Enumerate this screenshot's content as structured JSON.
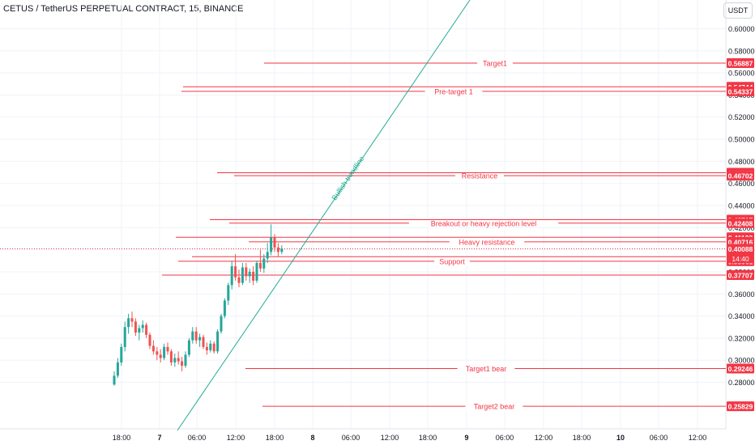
{
  "header": {
    "title": "CETUS / TetherUS PERPETUAL CONTRACT, 15, BINANCE",
    "currency": "USDT"
  },
  "colors": {
    "up": "#26a69a",
    "down": "#ef5350",
    "level": "#f23645",
    "trend": "#22ab94",
    "axis_text": "#131722",
    "grid": "#f0f3fa"
  },
  "chart_data": {
    "type": "candlestick",
    "title": "CETUS / TetherUS PERPETUAL CONTRACT, 15, BINANCE",
    "ylim": [
      0.262,
      0.63
    ],
    "y_ticks": [
      "0.60000",
      "0.58000",
      "0.56000",
      "0.54000",
      "0.52000",
      "0.50000",
      "0.48000",
      "0.46000",
      "0.44000",
      "0.42000",
      "0.40000",
      "0.38000",
      "0.36000",
      "0.34000",
      "0.32000",
      "0.30000",
      "0.28000"
    ],
    "x_ticks": [
      "18:00",
      "7",
      "06:00",
      "12:00",
      "18:00",
      "8",
      "06:00",
      "12:00",
      "18:00",
      "9",
      "06:00",
      "12:00",
      "18:00",
      "10",
      "06:00",
      "12:00"
    ],
    "levels": [
      {
        "name": "Target1",
        "price": 0.56887
      },
      {
        "name": "Pre-target 1",
        "price": 0.54337
      },
      {
        "name": "",
        "price": 0.54744
      },
      {
        "name": "Resistance",
        "price": 0.46702
      },
      {
        "name": "",
        "price": 0.46965
      },
      {
        "name": "Breakout or heavy rejection level",
        "price": 0.42408
      },
      {
        "name": "",
        "price": 0.42717
      },
      {
        "name": "Heavy resistance",
        "price": 0.40716
      },
      {
        "name": "",
        "price": 0.41123
      },
      {
        "name": "Support",
        "price": 0.38961
      },
      {
        "name": "",
        "price": 0.39368
      },
      {
        "name": "",
        "price": 0.37707
      },
      {
        "name": "Target1 bear",
        "price": 0.29246
      },
      {
        "name": "Target2 bear",
        "price": 0.25829
      }
    ],
    "price_labels": [
      "0.56887",
      "0.54744",
      "0.54337",
      "0.46965",
      "0.46702",
      "0.42717",
      "0.42408",
      "0.41123",
      "0.40716",
      "0.40088",
      "0.39368",
      "0.38961",
      "0.37707",
      "0.29246",
      "0.25829"
    ],
    "current_price": "0.40088",
    "countdown": "14:40",
    "trendline_label": "Bullish trendline",
    "candles": [
      [
        0.278,
        0.29,
        0.277,
        0.286
      ],
      [
        0.286,
        0.302,
        0.284,
        0.298
      ],
      [
        0.298,
        0.315,
        0.295,
        0.312
      ],
      [
        0.312,
        0.335,
        0.308,
        0.33
      ],
      [
        0.33,
        0.342,
        0.324,
        0.338
      ],
      [
        0.338,
        0.344,
        0.33,
        0.335
      ],
      [
        0.335,
        0.338,
        0.322,
        0.325
      ],
      [
        0.325,
        0.332,
        0.318,
        0.329
      ],
      [
        0.329,
        0.336,
        0.325,
        0.332
      ],
      [
        0.332,
        0.334,
        0.32,
        0.323
      ],
      [
        0.323,
        0.325,
        0.31,
        0.313
      ],
      [
        0.313,
        0.318,
        0.305,
        0.308
      ],
      [
        0.308,
        0.312,
        0.3,
        0.305
      ],
      [
        0.305,
        0.31,
        0.298,
        0.302
      ],
      [
        0.302,
        0.315,
        0.3,
        0.312
      ],
      [
        0.312,
        0.316,
        0.305,
        0.308
      ],
      [
        0.308,
        0.31,
        0.295,
        0.298
      ],
      [
        0.298,
        0.306,
        0.294,
        0.302
      ],
      [
        0.302,
        0.308,
        0.296,
        0.299
      ],
      [
        0.299,
        0.303,
        0.29,
        0.295
      ],
      [
        0.295,
        0.308,
        0.293,
        0.305
      ],
      [
        0.305,
        0.32,
        0.303,
        0.318
      ],
      [
        0.318,
        0.33,
        0.315,
        0.326
      ],
      [
        0.326,
        0.33,
        0.315,
        0.318
      ],
      [
        0.318,
        0.324,
        0.312,
        0.321
      ],
      [
        0.321,
        0.323,
        0.31,
        0.312
      ],
      [
        0.312,
        0.316,
        0.305,
        0.309
      ],
      [
        0.309,
        0.318,
        0.307,
        0.315
      ],
      [
        0.315,
        0.317,
        0.306,
        0.308
      ],
      [
        0.308,
        0.328,
        0.306,
        0.326
      ],
      [
        0.326,
        0.342,
        0.324,
        0.34
      ],
      [
        0.34,
        0.356,
        0.338,
        0.354
      ],
      [
        0.354,
        0.37,
        0.35,
        0.368
      ],
      [
        0.368,
        0.39,
        0.364,
        0.385
      ],
      [
        0.385,
        0.396,
        0.372,
        0.375
      ],
      [
        0.375,
        0.382,
        0.366,
        0.37
      ],
      [
        0.37,
        0.388,
        0.368,
        0.384
      ],
      [
        0.384,
        0.388,
        0.372,
        0.376
      ],
      [
        0.376,
        0.383,
        0.37,
        0.38
      ],
      [
        0.38,
        0.385,
        0.368,
        0.372
      ],
      [
        0.372,
        0.39,
        0.37,
        0.388
      ],
      [
        0.388,
        0.4,
        0.38,
        0.383
      ],
      [
        0.383,
        0.396,
        0.379,
        0.392
      ],
      [
        0.392,
        0.406,
        0.388,
        0.398
      ],
      [
        0.398,
        0.423,
        0.395,
        0.411
      ],
      [
        0.411,
        0.414,
        0.398,
        0.402
      ],
      [
        0.402,
        0.406,
        0.394,
        0.398
      ],
      [
        0.398,
        0.404,
        0.396,
        0.4009
      ]
    ]
  }
}
